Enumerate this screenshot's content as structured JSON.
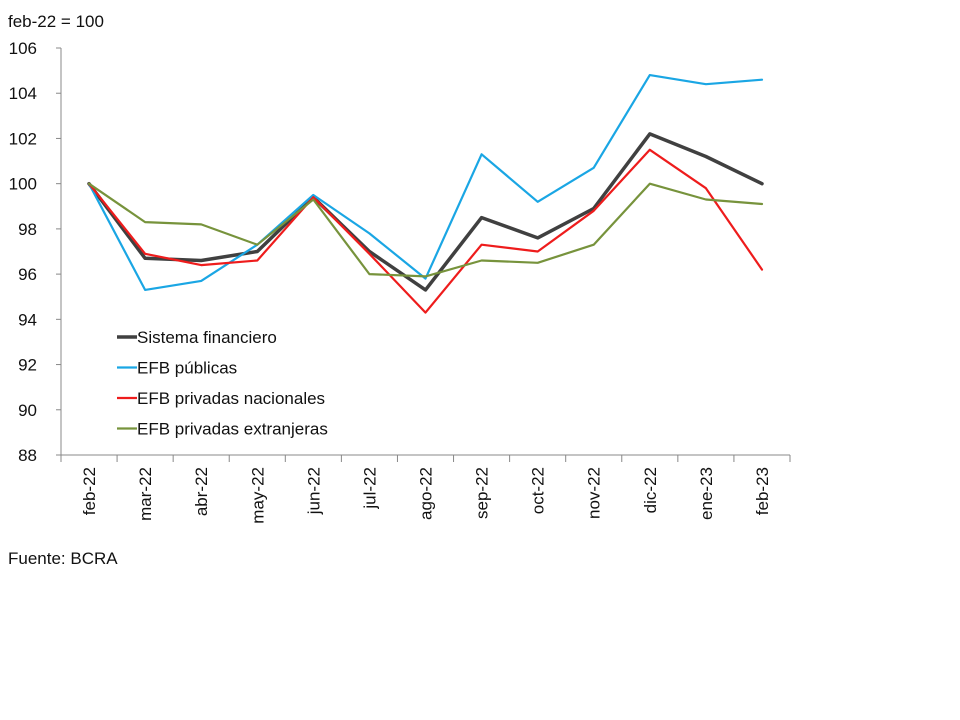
{
  "chart_data": {
    "type": "line",
    "unit_label": "feb-22 = 100",
    "source": "Fuente: BCRA",
    "categories": [
      "feb-22",
      "mar-22",
      "abr-22",
      "may-22",
      "jun-22",
      "jul-22",
      "ago-22",
      "sep-22",
      "oct-22",
      "nov-22",
      "dic-22",
      "ene-23",
      "feb-23"
    ],
    "ylim": [
      88,
      106
    ],
    "yticks": [
      88,
      90,
      92,
      94,
      96,
      98,
      100,
      102,
      104,
      106
    ],
    "grid": false,
    "legend_placement": "lower-left",
    "series": [
      {
        "name": "Sistema financiero",
        "color": "#404040",
        "width": "thick",
        "values": [
          100,
          96.7,
          96.6,
          97.0,
          99.4,
          97.0,
          95.3,
          98.5,
          97.6,
          98.9,
          102.2,
          101.2,
          100.0
        ]
      },
      {
        "name": "EFB públicas",
        "color": "#1aa6e4",
        "width": "normal",
        "values": [
          100,
          95.3,
          95.7,
          97.3,
          99.5,
          97.8,
          95.8,
          101.3,
          99.2,
          100.7,
          104.8,
          104.4,
          104.6
        ]
      },
      {
        "name": "EFB privadas nacionales",
        "color": "#ee1c1c",
        "width": "normal",
        "values": [
          100,
          96.9,
          96.4,
          96.6,
          99.4,
          96.9,
          94.3,
          97.3,
          97.0,
          98.8,
          101.5,
          99.8,
          96.2
        ]
      },
      {
        "name": "EFB privadas extranjeras",
        "color": "#77933c",
        "width": "normal",
        "values": [
          100,
          98.3,
          98.2,
          97.3,
          99.3,
          96.0,
          95.9,
          96.6,
          96.5,
          97.3,
          100.0,
          99.3,
          99.1
        ]
      }
    ]
  }
}
